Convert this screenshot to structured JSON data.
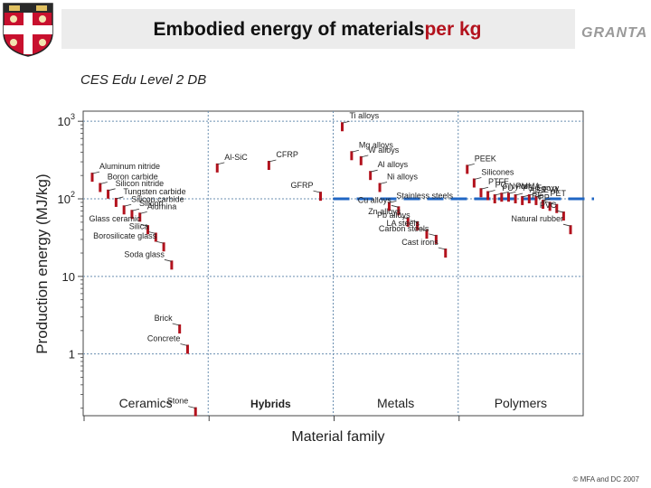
{
  "header": {
    "title_main": "Embodied energy of materials",
    "title_accent": "per kg",
    "logo_text": "GRANTA"
  },
  "subtitle": "CES Edu Level 2 DB",
  "footer": "© MFA and DC 2007",
  "colors": {
    "bar": "#b3121d",
    "threshold": "#1f66c4",
    "grid": "#6b8fb0",
    "accent": "#b3121d"
  },
  "chart_data": {
    "type": "scatter",
    "title": "",
    "xlabel": "Material family",
    "ylabel": "Production energy (MJ/kg)",
    "y_scale": "log",
    "ylim": [
      0.16,
      1350
    ],
    "y_ticks": [
      {
        "value": 1000,
        "base": "10",
        "exp": "3"
      },
      {
        "value": 100,
        "base": "10",
        "exp": "2"
      },
      {
        "value": 10,
        "base": "10",
        "exp": ""
      },
      {
        "value": 1,
        "base": "1",
        "exp": ""
      }
    ],
    "categories": [
      "Ceramics",
      "Hybrids",
      "Metals",
      "Polymers"
    ],
    "threshold_line": {
      "y": 100,
      "style": "dashed"
    },
    "points": [
      {
        "category": "Ceramics",
        "label": "Aluminum nitride",
        "y": 190
      },
      {
        "category": "Ceramics",
        "label": "Boron carbide",
        "y": 140
      },
      {
        "category": "Ceramics",
        "label": "Silicon nitride",
        "y": 115
      },
      {
        "category": "Ceramics",
        "label": "Tungsten carbide",
        "y": 90
      },
      {
        "category": "Ceramics",
        "label": "Silicon carbide",
        "y": 72
      },
      {
        "category": "Ceramics",
        "label": "Silicon",
        "y": 63
      },
      {
        "category": "Ceramics",
        "label": "Alumina",
        "y": 58
      },
      {
        "category": "Ceramics",
        "label": "Glass ceramic",
        "y": 40
      },
      {
        "category": "Ceramics",
        "label": "Silica",
        "y": 32
      },
      {
        "category": "Ceramics",
        "label": "Borosilicate glass",
        "y": 24
      },
      {
        "category": "Ceramics",
        "label": "Soda glass",
        "y": 14
      },
      {
        "category": "Ceramics",
        "label": "Brick",
        "y": 2.1
      },
      {
        "category": "Ceramics",
        "label": "Concrete",
        "y": 1.15
      },
      {
        "category": "Ceramics",
        "label": "Stone",
        "y": 0.18
      },
      {
        "category": "Hybrids",
        "label": "Al-SiC",
        "y": 250
      },
      {
        "category": "Hybrids",
        "label": "CFRP",
        "y": 270
      },
      {
        "category": "Hybrids",
        "label": "GFRP",
        "y": 108
      },
      {
        "category": "Metals",
        "label": "Ti alloys",
        "y": 850
      },
      {
        "category": "Metals",
        "label": "Mg alloys",
        "y": 360
      },
      {
        "category": "Metals",
        "label": "W alloys",
        "y": 310
      },
      {
        "category": "Metals",
        "label": "Al alloys",
        "y": 200
      },
      {
        "category": "Metals",
        "label": "Ni alloys",
        "y": 140
      },
      {
        "category": "Metals",
        "label": "Stainless steels",
        "y": 80
      },
      {
        "category": "Metals",
        "label": "Cu alloys",
        "y": 70
      },
      {
        "category": "Metals",
        "label": "Zn alloys",
        "y": 50
      },
      {
        "category": "Metals",
        "label": "Pb alloys",
        "y": 45
      },
      {
        "category": "Metals",
        "label": "LA steels",
        "y": 35
      },
      {
        "category": "Metals",
        "label": "Carbon steels",
        "y": 30
      },
      {
        "category": "Metals",
        "label": "Cast irons",
        "y": 20
      },
      {
        "category": "Polymers",
        "label": "PEEK",
        "y": 240
      },
      {
        "category": "Polymers",
        "label": "Silicones",
        "y": 160
      },
      {
        "category": "Polymers",
        "label": "PTFE",
        "y": 120
      },
      {
        "category": "Polymers",
        "label": "PC",
        "y": 110
      },
      {
        "category": "Polymers",
        "label": "PU",
        "y": 100
      },
      {
        "category": "Polymers",
        "label": "Nylon",
        "y": 105
      },
      {
        "category": "Polymers",
        "label": "PMMA",
        "y": 105
      },
      {
        "category": "Polymers",
        "label": "PS",
        "y": 100
      },
      {
        "category": "Polymers",
        "label": "ABS",
        "y": 95
      },
      {
        "category": "Polymers",
        "label": "Epoxy",
        "y": 100
      },
      {
        "category": "Polymers",
        "label": "EVA",
        "y": 95
      },
      {
        "category": "Polymers",
        "label": "PET",
        "y": 85
      },
      {
        "category": "Polymers",
        "label": "PE",
        "y": 80
      },
      {
        "category": "Polymers",
        "label": "PP",
        "y": 75
      },
      {
        "category": "Polymers",
        "label": "PVC",
        "y": 60
      },
      {
        "category": "Polymers",
        "label": "Natural rubber",
        "y": 40
      }
    ]
  }
}
